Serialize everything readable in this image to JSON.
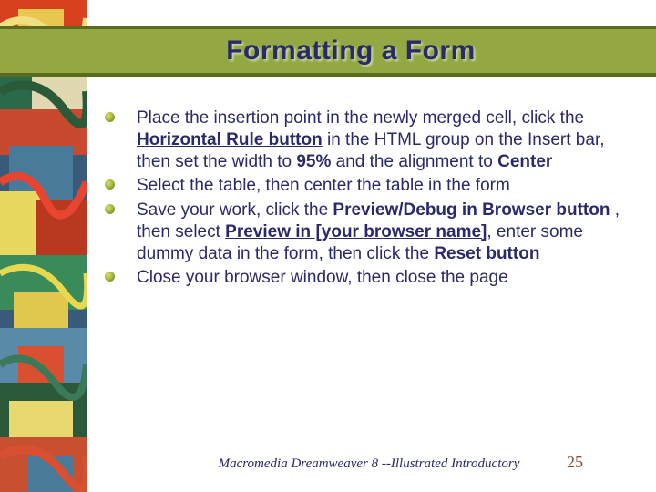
{
  "colors": {
    "title_bar_bg": "#93a843",
    "title_bar_border": "#5a6b1f",
    "title_text": "#2a2a6b",
    "body_text": "#2a2a6b",
    "page_num": "#8a4a3a",
    "bullet_gradient": [
      "#d8e070",
      "#a8b840",
      "#7a8a2a"
    ]
  },
  "typography": {
    "title_fontsize": 30,
    "body_fontsize": 19,
    "footer_fontsize": 15,
    "pagenum_fontsize": 18
  },
  "title": "Formatting a Form",
  "bullets": [
    {
      "runs": [
        {
          "t": "Place the insertion point in the newly merged cell, click the "
        },
        {
          "t": "Horizontal Rule button",
          "b": true,
          "u": true
        },
        {
          "t": " in the HTML group on the Insert bar, then set the width to "
        },
        {
          "t": "95%",
          "b": true
        },
        {
          "t": " and the alignment to "
        },
        {
          "t": "Center",
          "b": true
        }
      ]
    },
    {
      "runs": [
        {
          "t": "Select the table, then center the table in the form"
        }
      ]
    },
    {
      "runs": [
        {
          "t": "Save your work, click the "
        },
        {
          "t": "Preview/Debug in Browser button",
          "b": true
        },
        {
          "t": " , then select "
        },
        {
          "t": "Preview in [your browser name]",
          "b": true,
          "u": true
        },
        {
          "t": ", enter some dummy data in the form, then click the "
        },
        {
          "t": "Reset button",
          "b": true
        }
      ]
    },
    {
      "runs": [
        {
          "t": "Close your browser window, then close the page"
        }
      ]
    }
  ],
  "footer_ref": "Macromedia Dreamweaver 8 --Illustrated Introductory",
  "page_number": "25"
}
